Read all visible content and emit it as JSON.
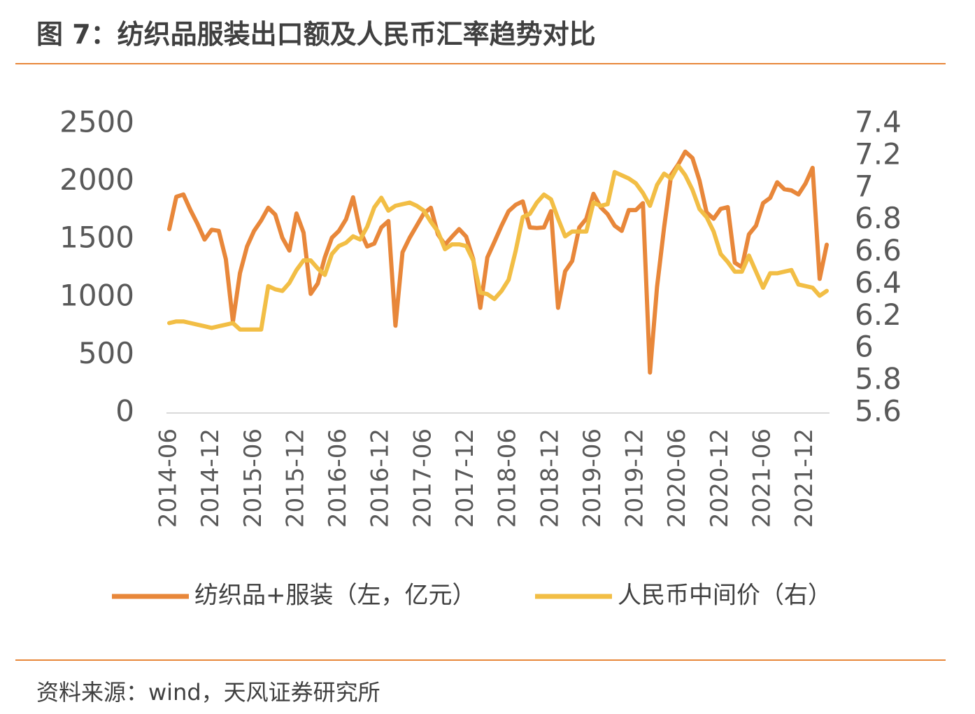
{
  "chart_data": {
    "type": "line",
    "title": "图 7：纺织品服装出口额及人民币汇率趋势对比",
    "source": "资料来源：wind，天风证券研究所",
    "categories": [
      "2014-06",
      null,
      null,
      null,
      null,
      null,
      "2014-12",
      null,
      null,
      null,
      null,
      null,
      "2015-06",
      null,
      null,
      null,
      null,
      null,
      "2015-12",
      null,
      null,
      null,
      null,
      null,
      "2016-06",
      null,
      null,
      null,
      null,
      null,
      "2016-12",
      null,
      null,
      null,
      null,
      null,
      "2017-06",
      null,
      null,
      null,
      null,
      null,
      "2017-12",
      null,
      null,
      null,
      null,
      null,
      "2018-06",
      null,
      null,
      null,
      null,
      null,
      "2018-12",
      null,
      null,
      null,
      null,
      null,
      "2019-06",
      null,
      null,
      null,
      null,
      null,
      "2019-12",
      null,
      null,
      null,
      null,
      null,
      "2020-06",
      null,
      null,
      null,
      null,
      null,
      "2020-12",
      null,
      null,
      null,
      null,
      null,
      "2021-06",
      null,
      null,
      null,
      null,
      null,
      "2021-12",
      null,
      null,
      null
    ],
    "series": [
      {
        "name": "纺织品+服装（左，亿元）",
        "color": "#E8873A",
        "values": [
          1590,
          1870,
          1890,
          1755,
          1635,
          1500,
          1585,
          1575,
          1330,
          790,
          1210,
          1440,
          1575,
          1665,
          1775,
          1715,
          1515,
          1405,
          1725,
          1560,
          1030,
          1120,
          1345,
          1515,
          1575,
          1675,
          1865,
          1575,
          1440,
          1465,
          1605,
          1660,
          755,
          1390,
          1515,
          1620,
          1725,
          1775,
          1545,
          1455,
          1525,
          1590,
          1525,
          1330,
          910,
          1345,
          1480,
          1620,
          1745,
          1800,
          1830,
          1605,
          1600,
          1605,
          1745,
          910,
          1225,
          1315,
          1605,
          1680,
          1895,
          1780,
          1720,
          1620,
          1575,
          1755,
          1755,
          1815,
          350,
          1090,
          1605,
          2060,
          2150,
          2260,
          2205,
          2010,
          1735,
          1680,
          1765,
          1780,
          1300,
          1260,
          1545,
          1620,
          1815,
          1860,
          1995,
          1935,
          1925,
          1890,
          1985,
          2120,
          1160,
          1455
        ]
      },
      {
        "name": "人民币中间价（右）",
        "color": "#F2BE45",
        "axis": "y2",
        "values": [
          6.16,
          6.17,
          6.17,
          6.16,
          6.15,
          6.14,
          6.13,
          6.14,
          6.15,
          6.16,
          6.12,
          6.12,
          6.12,
          6.12,
          6.39,
          6.37,
          6.36,
          6.41,
          6.49,
          6.55,
          6.55,
          6.5,
          6.46,
          6.59,
          6.64,
          6.66,
          6.7,
          6.68,
          6.76,
          6.88,
          6.94,
          6.86,
          6.89,
          6.9,
          6.91,
          6.89,
          6.86,
          6.79,
          6.73,
          6.62,
          6.65,
          6.65,
          6.64,
          6.55,
          6.35,
          6.34,
          6.31,
          6.36,
          6.43,
          6.61,
          6.82,
          6.84,
          6.91,
          6.96,
          6.93,
          6.81,
          6.7,
          6.73,
          6.73,
          6.73,
          6.91,
          6.89,
          6.9,
          7.1,
          7.08,
          7.06,
          7.03,
          6.97,
          6.89,
          7.02,
          7.09,
          7.06,
          7.14,
          7.08,
          6.99,
          6.87,
          6.82,
          6.73,
          6.59,
          6.54,
          6.48,
          6.48,
          6.58,
          6.48,
          6.38,
          6.47,
          6.47,
          6.48,
          6.49,
          6.4,
          6.39,
          6.38,
          6.33,
          6.36
        ]
      }
    ],
    "ylim": [
      0,
      2500
    ],
    "yticks": [
      0,
      500,
      1000,
      1500,
      2000,
      2500
    ],
    "y2lim": [
      5.6,
      7.4
    ],
    "y2ticks": [
      5.6,
      5.8,
      6,
      6.2,
      6.4,
      6.6,
      6.8,
      7,
      7.2,
      7.4
    ],
    "grid": false,
    "legend": "bottom"
  }
}
